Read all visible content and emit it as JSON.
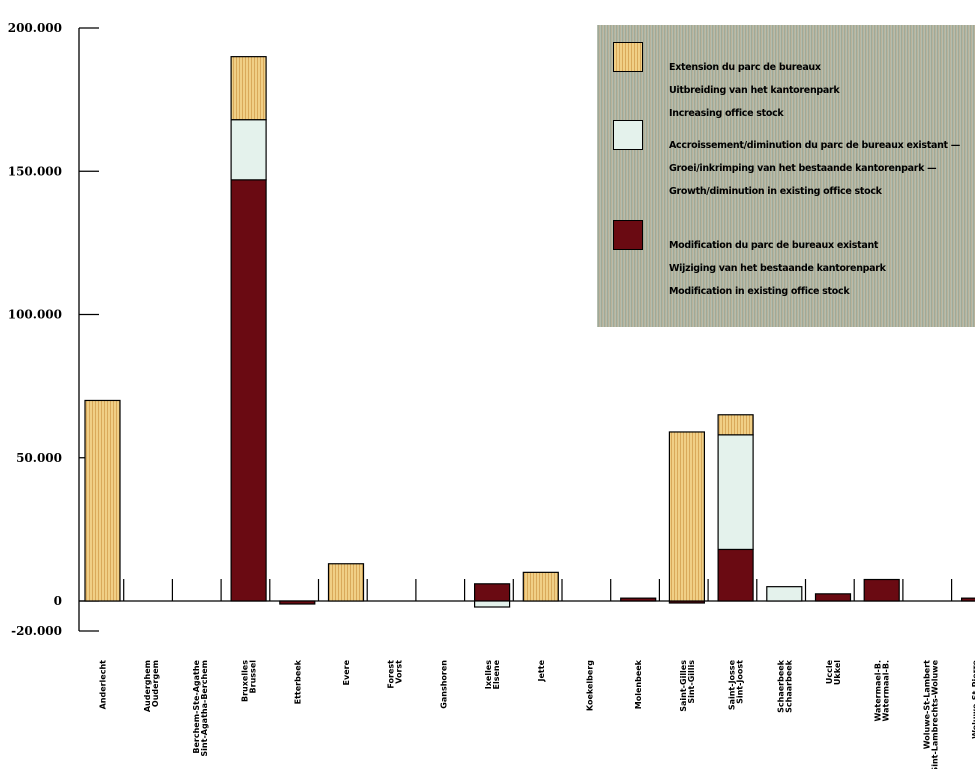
{
  "chart_data": {
    "type": "bar",
    "stacked": true,
    "categories": [
      "Anderlecht",
      "Auderghem\nOudergem",
      "Berchem-Ste-Agathe\nSint-Agatha-Berchem",
      "Bruxelles\nBrussel",
      "Etterbeek",
      "Evere",
      "Forest\nVorst",
      "Ganshoren",
      "Ixelles\nElsene",
      "Jette",
      "Koekelberg",
      "Molenbeek",
      "Saint-Gilles\nSint-Gillis",
      "Saint-Josse\nSint-Joost",
      "Schaerbeek\nSchaarbeek",
      "Uccle\nUkkel",
      "Watermael-B.\nWatermaal-B.",
      "Woluwe-St-Lambert\nSint-Lambrechts-Woluwe",
      "Woluwe-St-Pierre\nSint-Pieters-Woluwe"
    ],
    "series": [
      {
        "name": "Extension du parc de bureaux\nUitbreiding van het kantorenpark\nIncreasing office stock",
        "color": "#e8c070",
        "values": [
          70000,
          0,
          0,
          22000,
          0,
          13000,
          0,
          0,
          0,
          10000,
          0,
          0,
          59000,
          7000,
          0,
          0,
          0,
          0,
          0
        ]
      },
      {
        "name": "Accroissement/diminution du parc de bureaux existant — Groei/inkrimping van het bestaande kantorenpark — Growth/diminution in existing office stock",
        "color": "#e4f2ec",
        "values": [
          0,
          0,
          0,
          21000,
          0,
          0,
          0,
          0,
          -4000,
          0,
          0,
          0,
          0,
          40000,
          5000,
          0,
          0,
          0,
          0
        ]
      },
      {
        "name": "Modification du parc de bureaux existant\nWijziging van het bestaande kantorenpark\nModification in existing office stock",
        "color": "#6a0a12",
        "values": [
          0,
          0,
          0,
          147000,
          -2000,
          0,
          0,
          0,
          6000,
          0,
          0,
          1000,
          -1000,
          18000,
          0,
          2500,
          7500,
          0,
          1000
        ]
      }
    ],
    "ylim": [
      -20000,
      200000
    ],
    "yticks": [
      -20000,
      0,
      50000,
      100000,
      150000,
      200000
    ],
    "ytick_labels": [
      "-20.000",
      "0",
      "50.000",
      "100.000",
      "150.000",
      "200.000"
    ],
    "legend_position": "top-right",
    "grid": false
  }
}
